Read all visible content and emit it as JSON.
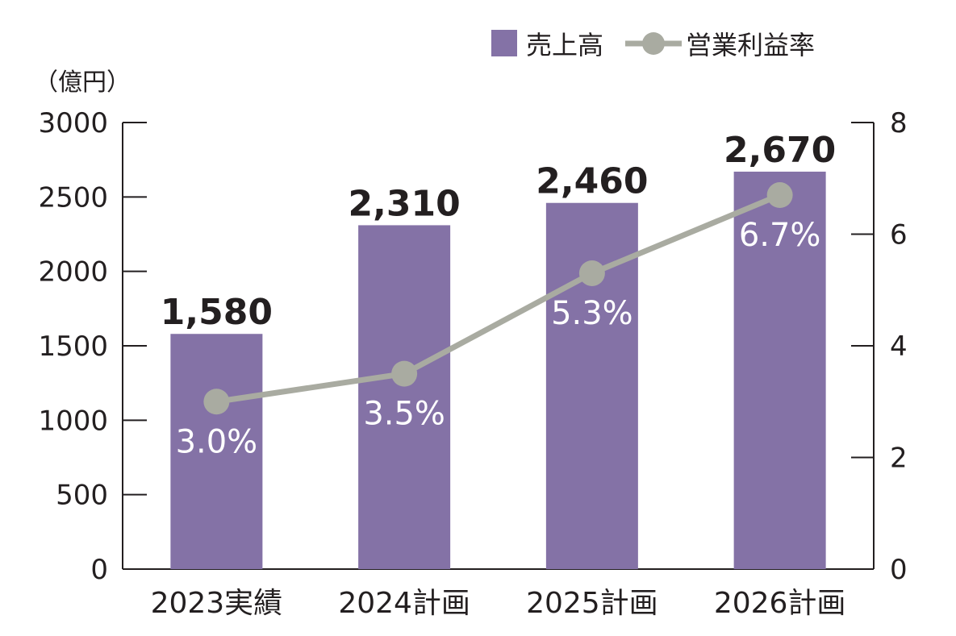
{
  "chart_data": {
    "type": "bar",
    "categories": [
      "2023実績",
      "2024計画",
      "2025計画",
      "2026計画"
    ],
    "series": [
      {
        "name": "売上高",
        "axis": "left",
        "kind": "bar",
        "values": [
          1580,
          2310,
          2460,
          2670
        ],
        "labels": [
          "1,580",
          "2,310",
          "2,460",
          "2,670"
        ],
        "color": "#8472a6"
      },
      {
        "name": "営業利益率",
        "axis": "right",
        "kind": "line",
        "values": [
          3.0,
          3.5,
          5.3,
          6.7
        ],
        "labels": [
          "3.0%",
          "3.5%",
          "5.3%",
          "6.7%"
        ],
        "color": "#a9aba1"
      }
    ],
    "y_left": {
      "unit_label": "（億円）",
      "ylim": [
        0,
        3000
      ],
      "ticks": [
        "0",
        "500",
        "1000",
        "1500",
        "2000",
        "2500",
        "3000"
      ]
    },
    "y_right": {
      "ylim": [
        0,
        8
      ],
      "ticks": [
        "0",
        "2",
        "4",
        "6",
        "8"
      ]
    },
    "legend_position": "top-right",
    "grid": false
  }
}
